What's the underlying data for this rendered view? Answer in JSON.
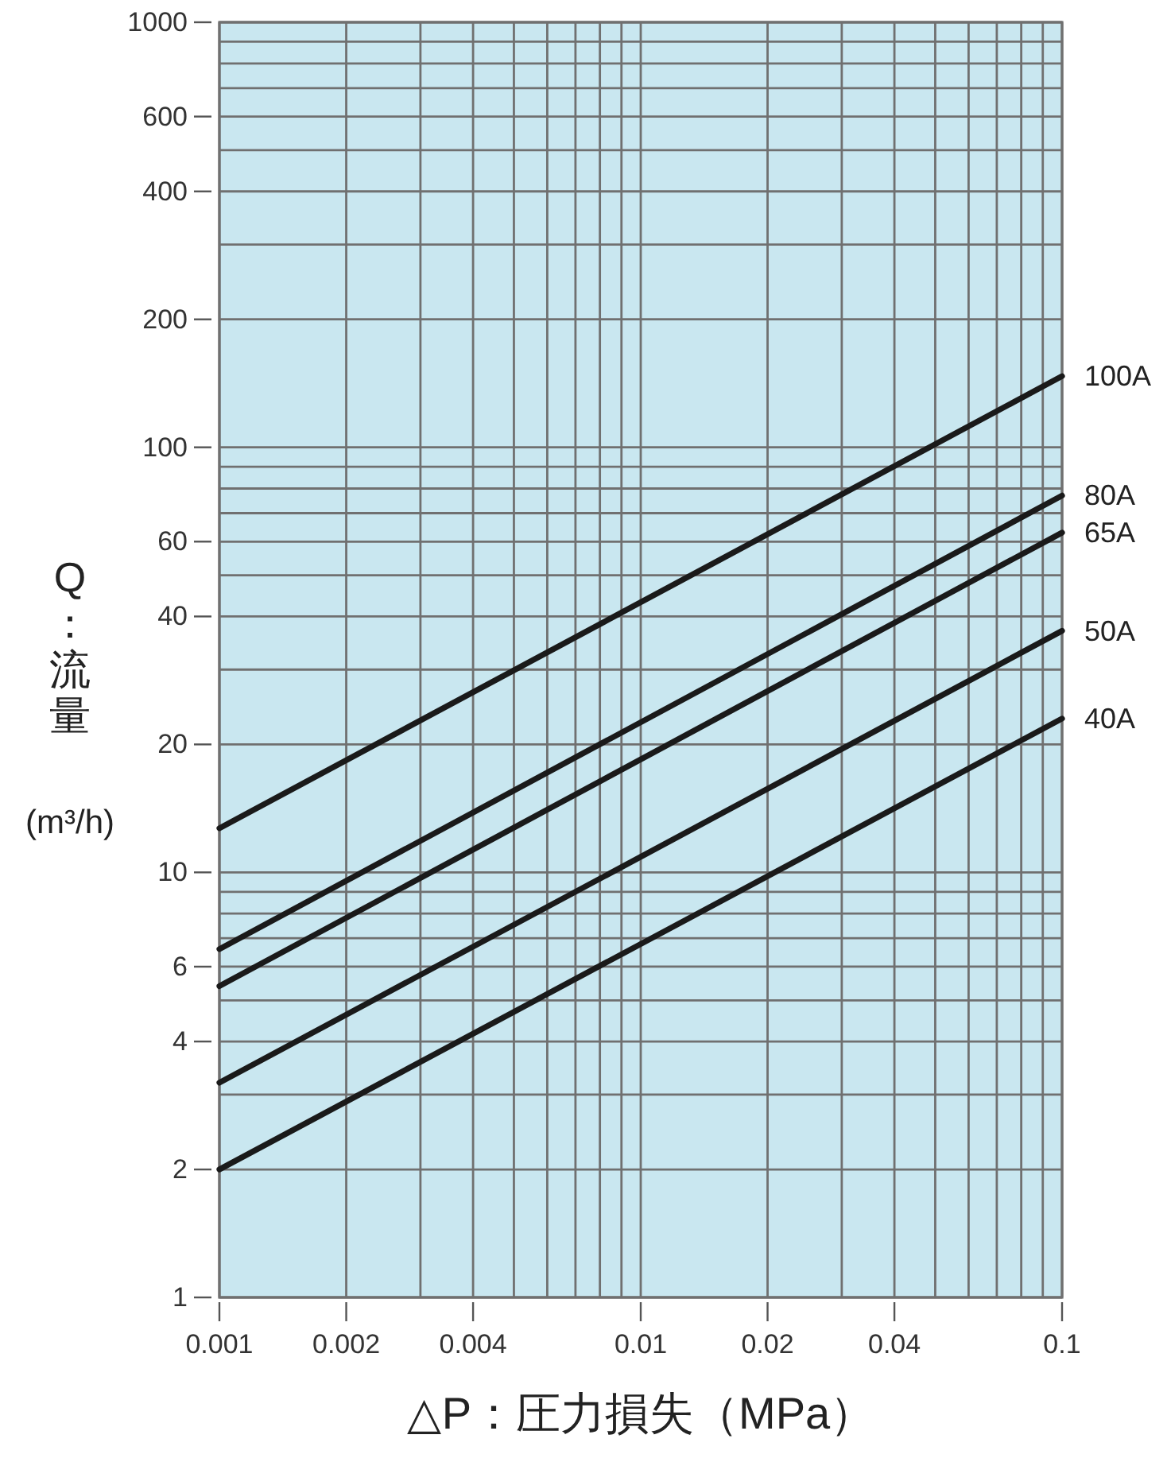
{
  "chart_data": {
    "type": "line",
    "xlabel": "△P：圧力損失（MPa）",
    "ylabel": "Q：流量 (m³/h)",
    "log": "xy",
    "x": [
      0.001,
      0.1
    ],
    "series": [
      {
        "name": "100A",
        "color": "#1a1a1a",
        "values": [
          12.7,
          147
        ]
      },
      {
        "name": "80A",
        "color": "#1a1a1a",
        "values": [
          6.6,
          77
        ]
      },
      {
        "name": "65A",
        "color": "#1a1a1a",
        "values": [
          5.4,
          63
        ]
      },
      {
        "name": "50A",
        "color": "#1a1a1a",
        "values": [
          3.2,
          37
        ]
      },
      {
        "name": "40A",
        "color": "#1a1a1a",
        "values": [
          2.0,
          23
        ]
      }
    ],
    "xlim": [
      0.001,
      0.1
    ],
    "ylim": [
      1,
      1000
    ],
    "xticks": [
      0.001,
      0.002,
      {
        "value": 0.003,
        "label": null
      },
      0.004,
      {
        "value": 0.005,
        "label": null
      },
      {
        "value": 0.006,
        "label": null
      },
      {
        "value": 0.007,
        "label": null
      },
      {
        "value": 0.008,
        "label": null
      },
      {
        "value": 0.009,
        "label": null
      },
      0.01,
      0.02,
      {
        "value": 0.03,
        "label": null
      },
      0.04,
      {
        "value": 0.05,
        "label": null
      },
      {
        "value": 0.06,
        "label": null
      },
      {
        "value": 0.07,
        "label": null
      },
      {
        "value": 0.08,
        "label": null
      },
      {
        "value": 0.09,
        "label": null
      },
      0.1
    ],
    "yticks": [
      1,
      2,
      {
        "value": 3,
        "label": null
      },
      4,
      {
        "value": 5,
        "label": null
      },
      6,
      {
        "value": 7,
        "label": null
      },
      {
        "value": 8,
        "label": null
      },
      {
        "value": 9,
        "label": null
      },
      10,
      20,
      {
        "value": 30,
        "label": null
      },
      40,
      {
        "value": 50,
        "label": null
      },
      60,
      {
        "value": 70,
        "label": null
      },
      {
        "value": 80,
        "label": null
      },
      {
        "value": 90,
        "label": null
      },
      100,
      200,
      {
        "value": 300,
        "label": null
      },
      400,
      {
        "value": 500,
        "label": null
      },
      600,
      {
        "value": 700,
        "label": null
      },
      {
        "value": 800,
        "label": null
      },
      {
        "value": 900,
        "label": null
      },
      1000
    ],
    "grid": true,
    "marker": "none",
    "line_style": "solid"
  }
}
